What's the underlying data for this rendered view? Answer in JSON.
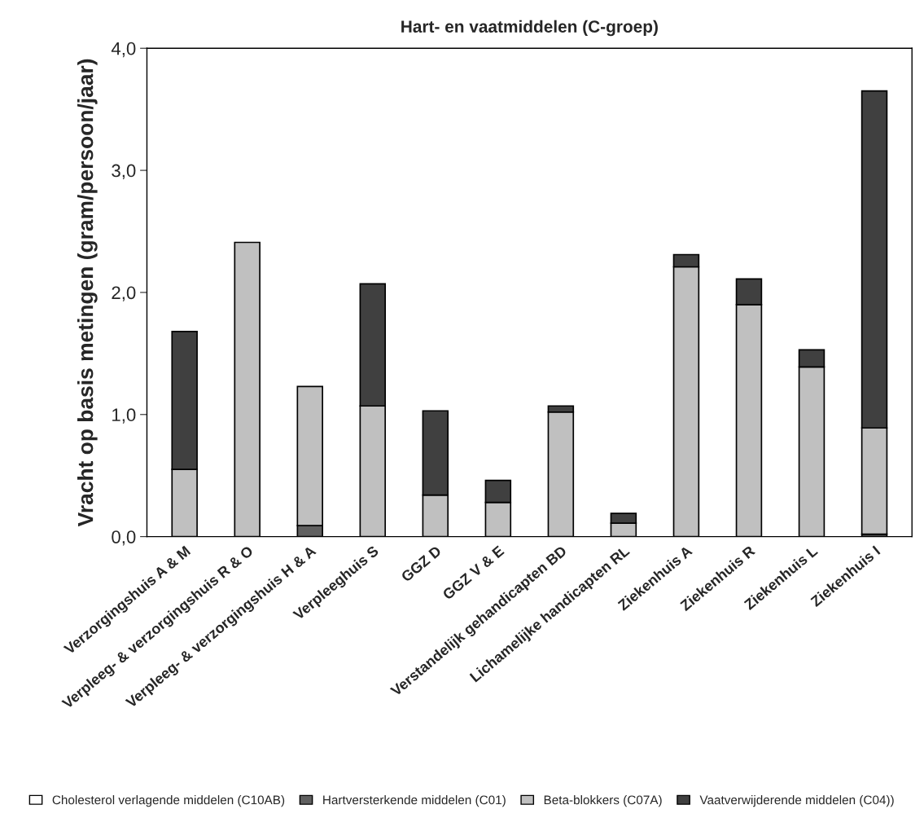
{
  "chart_data": {
    "type": "bar",
    "stacked": true,
    "title": "Hart- en vaatmiddelen (C-groep)",
    "ylabel": "Vracht op basis metingen (gram/persoon/jaar)",
    "categories": [
      "Verzorgingshuis A & M",
      "Verpleeg- & verzorgingshuis R & O",
      "Verpleeg- & verzorgingshuis H & A",
      "Verpleeghuis S",
      "GGZ D",
      "GGZ V & E",
      "Verstandelijk gehandicapten BD",
      "Lichamelijke handicapten RL",
      "Ziekenhuis A",
      "Ziekenhuis R",
      "Ziekenhuis L",
      "Ziekenhuis I"
    ],
    "series": [
      {
        "name": "Cholesterol verlagende middelen (C10AB)",
        "color": "#ffffff",
        "values": [
          null,
          null,
          null,
          null,
          null,
          null,
          null,
          null,
          null,
          null,
          null,
          null
        ]
      },
      {
        "name": "Hartversterkende middelen (C01)",
        "color": "#606060",
        "values": [
          0,
          0,
          0.09,
          0,
          0,
          null,
          0,
          0,
          0,
          0,
          0,
          0.02
        ]
      },
      {
        "name": "Beta-blokkers (C07A)",
        "color": "#c0c0c0",
        "values": [
          0.55,
          2.41,
          1.14,
          1.07,
          0.34,
          0.28,
          1.02,
          0.11,
          2.21,
          1.9,
          1.39,
          0.87
        ]
      },
      {
        "name": "Vaatverwijderende middelen (C04))",
        "color": "#404040",
        "values": [
          1.13,
          0,
          0,
          1.0,
          0.69,
          0.18,
          0.05,
          0.08,
          0.1,
          0.21,
          0.14,
          2.76
        ]
      }
    ],
    "ylim": [
      0,
      4
    ],
    "yticks": [
      {
        "value": 0,
        "label": "0,0"
      },
      {
        "value": 1,
        "label": "1,0"
      },
      {
        "value": 2,
        "label": "2,0"
      },
      {
        "value": 3,
        "label": "3,0"
      },
      {
        "value": 4,
        "label": "4,0"
      }
    ],
    "grid": false,
    "legend": "bottom"
  }
}
